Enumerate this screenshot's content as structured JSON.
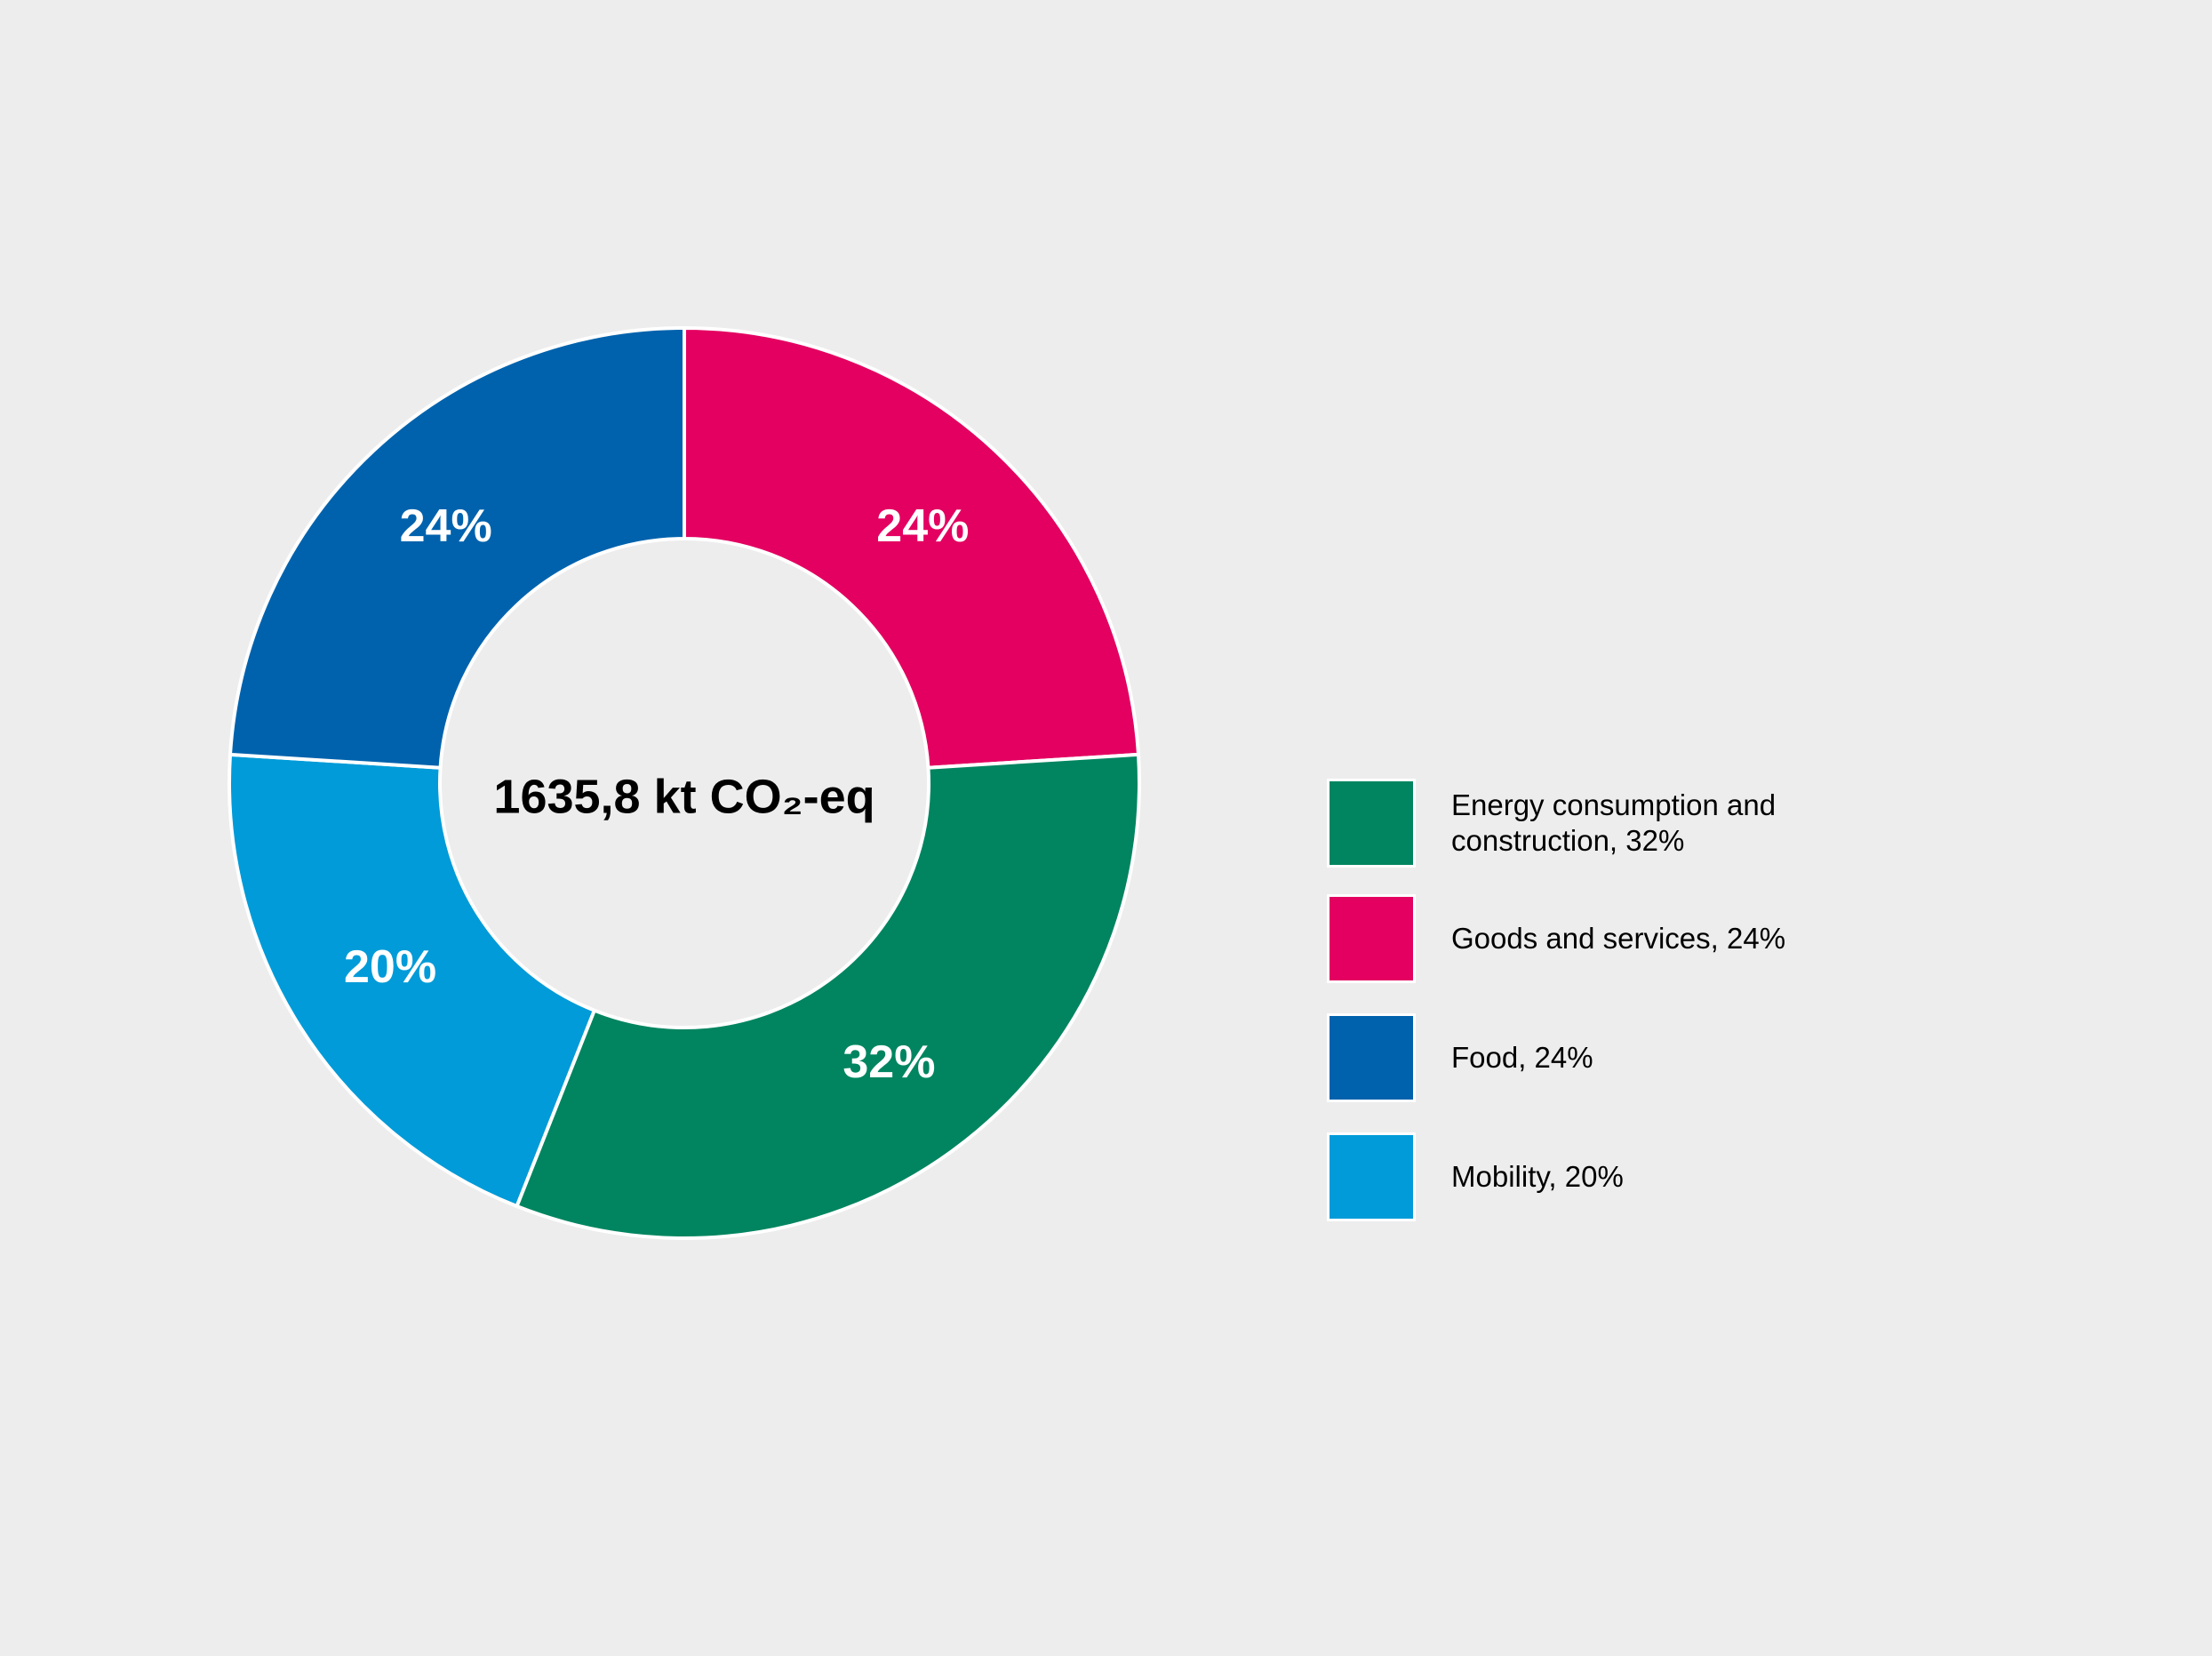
{
  "chart_data": {
    "type": "pie",
    "donut": true,
    "center_label": "1635,8 kt CO₂-eq",
    "slices": [
      {
        "name": "Goods and services",
        "value": 24,
        "label": "24%",
        "color": "#e30061",
        "legend": "Goods and services, 24%"
      },
      {
        "name": "Energy consumption and construction",
        "value": 32,
        "label": "32%",
        "color": "#008560",
        "legend": "Energy consumption and construction, 32%"
      },
      {
        "name": "Mobility",
        "value": 20,
        "label": "20%",
        "color": "#009bd8",
        "legend": "Mobility, 20%"
      },
      {
        "name": "Food",
        "value": 24,
        "label": "24%",
        "color": "#0062ad",
        "legend": "Food, 24%"
      }
    ],
    "legend_order": [
      1,
      0,
      3,
      2
    ],
    "legend_placement": "right"
  }
}
